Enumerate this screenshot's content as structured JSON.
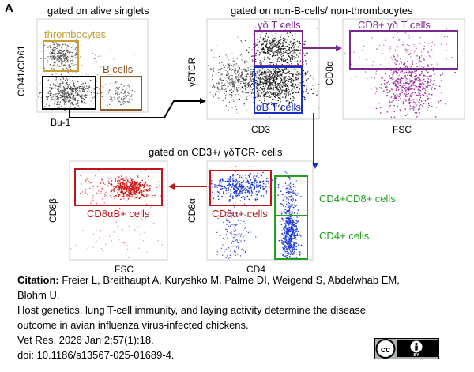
{
  "panel_letter": "A",
  "headers": {
    "alive_singlets": "gated on alive singlets",
    "non_b_non_thrombo": "gated on non-B-cells/ non-thrombocytes",
    "cd3_gdtcr": "gated on CD3+/ γδTCR- cells"
  },
  "axes": {
    "p1_y": "CD41/CD61",
    "p1_x": "Bu-1",
    "p2_y": "γδTCR",
    "p2_x": "CD3",
    "p3_y": "CD8α",
    "p3_x": "FSC",
    "p4_y": "CD8β",
    "p4_x": "FSC",
    "p5_y": "CD8α",
    "p5_x": "CD4"
  },
  "gates": {
    "thrombocytes": "thrombocytes",
    "b_cells": "B cells",
    "gd_t_cells": "γδ T cells",
    "ab_t_cells": "αB T cells",
    "cd8_gd_t_cells": "CD8+ γδ T cells",
    "cd8ab_cells": "CD8αB+ cells",
    "cd8a_cells": "CD8α+ cells",
    "cd4cd8_cells": "CD4+CD8+ cells",
    "cd4_cells": "CD4+ cells"
  },
  "colors": {
    "thrombocytes": "#c8a030",
    "b_cells": "#8a5a2a",
    "gd": "#7a2a8c",
    "ab": "#1a2fbf",
    "red": "#c0151b",
    "green": "#22a022"
  },
  "citation": {
    "label": "Citation:",
    "authors": "Freier L, Breithaupt A, Kuryshko M, Palme DI, Weigend S, Abdelwhab EM,",
    "authors_cont": "Blohm U.",
    "title_1": "Host genetics, lung T-cell immunity, and laying activity determine the disease",
    "title_2": "outcome in avian influenza virus-infected chickens.",
    "journal": "Vet Res. 2026 Jan 2;57(1):18.",
    "doi": "doi: 10.1186/s13567-025-01689-4."
  },
  "license": {
    "cc": "cc",
    "by": "BY"
  }
}
